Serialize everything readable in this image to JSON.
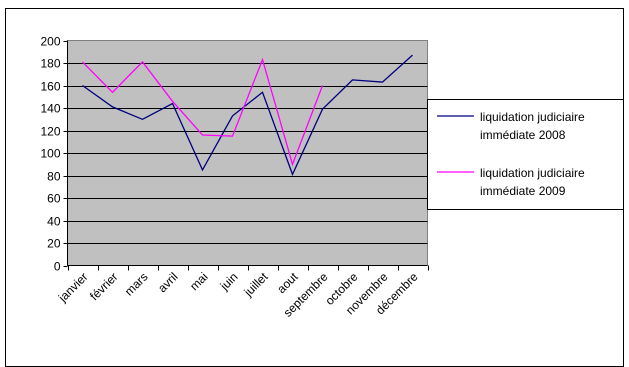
{
  "chart_data": {
    "type": "line",
    "categories": [
      "janvier",
      "février",
      "mars",
      "avril",
      "mai",
      "juin",
      "juillet",
      "aout",
      "septembre",
      "octobre",
      "novembre",
      "décembre"
    ],
    "ylim": [
      0,
      200
    ],
    "yticks": [
      0,
      20,
      40,
      60,
      80,
      100,
      120,
      140,
      160,
      180,
      200
    ],
    "grid": true,
    "legend_position": "right",
    "series": [
      {
        "name_line1": "liquidation judiciaire",
        "name_line2": "immédiate 2008",
        "color": "#000080",
        "values": [
          160,
          141,
          130,
          144,
          85,
          133,
          154,
          81,
          139,
          165,
          163,
          187
        ]
      },
      {
        "name_line1": "liquidation judiciaire",
        "name_line2": "immédiate 2009",
        "color": "#FF00FF",
        "values": [
          181,
          154,
          181,
          146,
          116,
          115,
          183,
          90,
          160,
          null,
          null,
          null
        ]
      }
    ],
    "plot_background": "#C0C0C0"
  }
}
